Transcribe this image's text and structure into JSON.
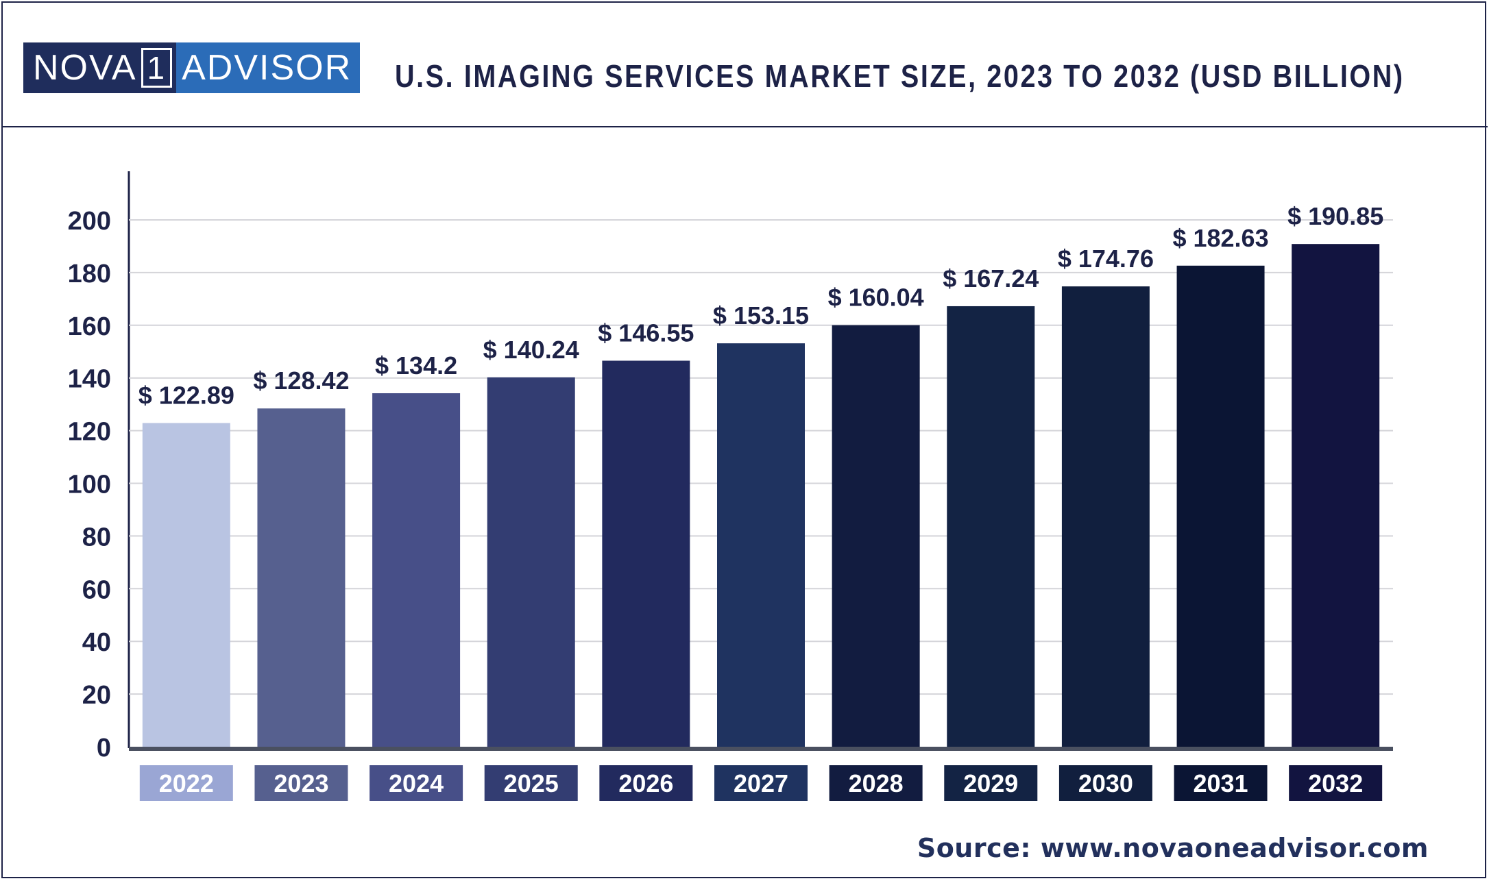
{
  "logo": {
    "left_text": "NOVA",
    "number": "1",
    "right_text": "ADVISOR"
  },
  "title": "U.S. IMAGING SERVICES MARKET SIZE, 2023 TO 2032 (USD BILLION)",
  "source": "Source: www.novaoneadvisor.com",
  "chart_data": {
    "type": "bar",
    "title": "U.S. IMAGING SERVICES MARKET SIZE, 2023 TO 2032 (USD BILLION)",
    "categories": [
      "2022",
      "2023",
      "2024",
      "2025",
      "2026",
      "2027",
      "2028",
      "2029",
      "2030",
      "2031",
      "2032"
    ],
    "values": [
      122.89,
      128.42,
      134.2,
      140.24,
      146.55,
      153.15,
      160.04,
      167.24,
      174.76,
      182.63,
      190.85
    ],
    "value_labels": [
      "$ 122.89",
      "$ 128.42",
      "$ 134.2",
      "$ 140.24",
      "$ 146.55",
      "$ 153.15",
      "$ 160.04",
      "$ 167.24",
      "$ 174.76",
      "$ 182.63",
      "$ 190.85"
    ],
    "bar_colors": [
      "#b9c4e2",
      "#56608f",
      "#474f88",
      "#333d72",
      "#222a5e",
      "#1f3360",
      "#121c40",
      "#132344",
      "#111f3e",
      "#0b1534",
      "#121440"
    ],
    "label_box_colors": [
      "#9aa6d4",
      "#56608f",
      "#474f88",
      "#333d72",
      "#222a5e",
      "#1f3360",
      "#121c40",
      "#132344",
      "#111f3e",
      "#0b1534",
      "#121440"
    ],
    "yticks": [
      0,
      20,
      40,
      60,
      80,
      100,
      120,
      140,
      160,
      180,
      200
    ],
    "ylim": [
      0,
      200
    ],
    "grid": true,
    "xlabel": "",
    "ylabel": ""
  }
}
